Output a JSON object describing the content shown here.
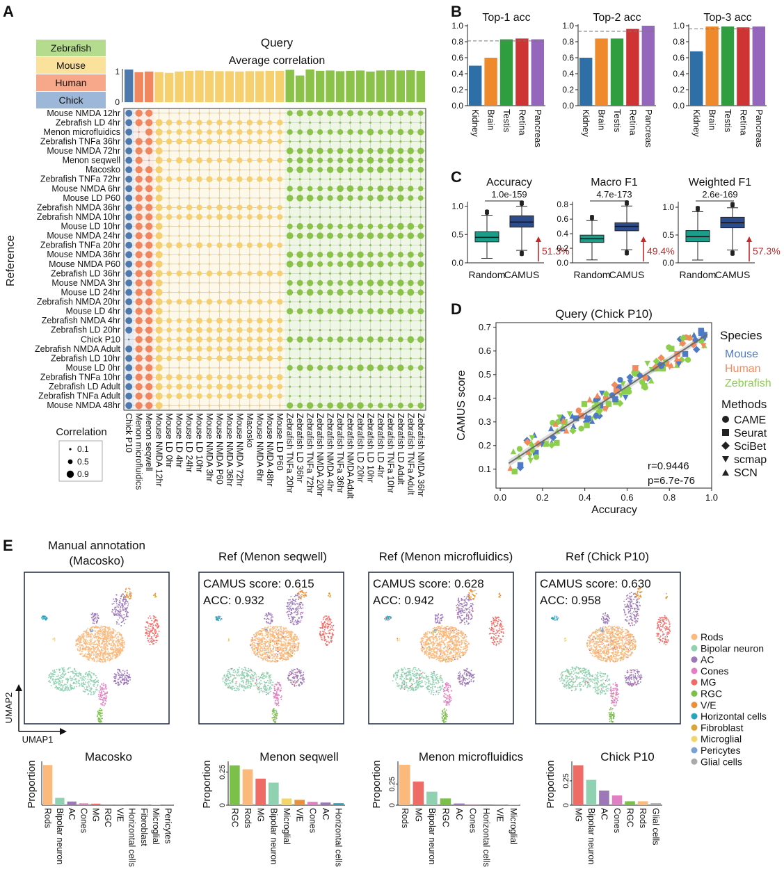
{
  "colors": {
    "Mouse": "#f6cf6e",
    "Zebrafish": "#8bc34a",
    "Human": "#f0875f",
    "Chick": "#4e79ad",
    "MouseLegend": "#fbe29c",
    "ZebrafishLegend": "#b5dc8e",
    "HumanLegend": "#f7a88a",
    "ChickLegend": "#9db7d9",
    "bar_blue": "#2f6fa8",
    "bar_orange": "#ee8a2c",
    "bar_green": "#2e9e3e",
    "bar_red": "#cf3434",
    "bar_purple": "#9467bd",
    "box_random": "#1a9e8a",
    "box_camus": "#2c4c8c",
    "arrow_red": "#c62828"
  },
  "panels": {
    "A": "A",
    "B": "B",
    "C": "C",
    "D": "D",
    "E": "E"
  },
  "heatmap": {
    "query_title": "Query",
    "subtitle": "Average correlation",
    "y_axis_title": "Reference",
    "species_legend": [
      "Zebrafish",
      "Mouse",
      "Human",
      "Chick"
    ],
    "size_legend_title": "Correlation",
    "size_legend": [
      "0.1",
      "0.5",
      "0.9"
    ],
    "columns": [
      "Chick P10",
      "Menon microfluidics",
      "Menon seqwell",
      "Mouse NMDA 12hr",
      "Mouse LD 0hr",
      "Mouse LD 4hr",
      "Mouse LD 24hr",
      "Mouse LD 10hr",
      "Mouse NMDA 3hr",
      "Mouse NMDA P60",
      "Mouse NMDA 36hr",
      "Mouse NMDA 72hr",
      "Macosko",
      "Mouse NMDA 6hr",
      "Mouse NMDA 48hr",
      "Mouse LD P60",
      "Zebrafish TNFa 20hr",
      "Zebrafish LD 36hr",
      "Zebrafish TNFa 72hr",
      "Zebrafish NMDA 20hr",
      "Zebrafish NMDA 4hr",
      "Zebrafish TNFa 36hr",
      "Zebrafish NMDA Adult",
      "Zebrafish LD 20hr",
      "Zebrafish LD 10hr",
      "Zebrafish LD 4hr",
      "Zebrafish TNFa 10hr",
      "Zebrafish LD Adult",
      "Zebrafish TNFa Adult",
      "Zebrafish NMDA 36hr"
    ],
    "column_species": [
      "Chick",
      "Human",
      "Human",
      "Mouse",
      "Mouse",
      "Mouse",
      "Mouse",
      "Mouse",
      "Mouse",
      "Mouse",
      "Mouse",
      "Mouse",
      "Mouse",
      "Mouse",
      "Mouse",
      "Mouse",
      "Zebrafish",
      "Zebrafish",
      "Zebrafish",
      "Zebrafish",
      "Zebrafish",
      "Zebrafish",
      "Zebrafish",
      "Zebrafish",
      "Zebrafish",
      "Zebrafish",
      "Zebrafish",
      "Zebrafish",
      "Zebrafish",
      "Zebrafish"
    ],
    "column_bar_values": [
      0.98,
      0.9,
      0.92,
      0.9,
      0.88,
      0.92,
      0.94,
      0.95,
      0.94,
      0.93,
      0.93,
      0.92,
      0.93,
      0.93,
      0.94,
      0.94,
      0.97,
      0.8,
      0.98,
      0.94,
      0.95,
      0.93,
      0.94,
      0.95,
      0.92,
      0.95,
      0.96,
      0.95,
      0.96,
      0.94
    ],
    "bar_ticks": [
      "0",
      "1"
    ],
    "rows": [
      "Mouse NMDA 12hr",
      "Zebrafish LD 4hr",
      "Menon microfluidics",
      "Zebrafish TNFa 36hr",
      "Mouse NMDA 72hr",
      "Menon seqwell",
      "Macosko",
      "Zebrafish TNFa 72hr",
      "Mouse NMDA 6hr",
      "Mouse LD P60",
      "Zebrafish NMDA 36hr",
      "Zebrafish NMDA 10hr",
      "Mouse LD 10hr",
      "Mouse NMDA 24hr",
      "Zebrafish TNFa 20hr",
      "Mouse NMDA 36hr",
      "Mouse NMDA P60",
      "Zebrafish LD 36hr",
      "Mouse NMDA 3hr",
      "Mouse LD 24hr",
      "Zebrafish NMDA 20hr",
      "Mouse LD 4hr",
      "Zebrafish NMDA 4hr",
      "Zebrafish LD 20hr",
      "Chick P10",
      "Zebrafish NMDA Adult",
      "Zebrafish LD 10hr",
      "Mouse LD 0hr",
      "Zebrafish TNFa 10hr",
      "Zebrafish LD Adult",
      "Zebrafish TNFa Adult",
      "Mouse NMDA 48hr"
    ]
  },
  "chart_data": [
    {
      "panel": "B",
      "type": "bar",
      "title": "Top-1 acc",
      "categories": [
        "Kidney",
        "Brain",
        "Testis",
        "Retina",
        "Pancreas"
      ],
      "values": [
        0.5,
        0.6,
        0.83,
        0.84,
        0.83
      ],
      "reference_line": 0.81,
      "ylim": [
        0.0,
        1.0
      ],
      "yticks": [
        "0.0",
        "0.2",
        "0.4",
        "0.6",
        "0.8",
        "1.0"
      ]
    },
    {
      "panel": "B",
      "type": "bar",
      "title": "Top-2 acc",
      "categories": [
        "Kidney",
        "Brain",
        "Testis",
        "Retina",
        "Pancreas"
      ],
      "values": [
        0.6,
        0.84,
        0.84,
        0.96,
        1.0
      ],
      "reference_line": 0.93,
      "ylim": [
        0.0,
        1.0
      ],
      "yticks": [
        "0.0",
        "0.2",
        "0.4",
        "0.6",
        "0.8",
        "1.0"
      ]
    },
    {
      "panel": "B",
      "type": "bar",
      "title": "Top-3 acc",
      "categories": [
        "Kidney",
        "Brain",
        "Testis",
        "Retina",
        "Pancreas"
      ],
      "values": [
        0.68,
        0.99,
        0.99,
        0.98,
        0.99
      ],
      "reference_line": 0.96,
      "ylim": [
        0.0,
        1.0
      ],
      "yticks": [
        "0.0",
        "0.2",
        "0.4",
        "0.6",
        "0.8",
        "1.0"
      ]
    },
    {
      "panel": "C",
      "type": "box",
      "title": "Accuracy",
      "pvalue": "1.0e-159",
      "categories": [
        "Random",
        "CAMUS"
      ],
      "boxes": [
        {
          "min": 0.08,
          "q1": 0.37,
          "median": 0.45,
          "q3": 0.55,
          "max": 0.84
        },
        {
          "min": 0.22,
          "q1": 0.63,
          "median": 0.72,
          "q3": 0.83,
          "max": 1.0
        }
      ],
      "improvement": "51.3%",
      "ylim": [
        0.0,
        1.08
      ],
      "yticks": [
        "0.0",
        "0.5",
        "1.0"
      ]
    },
    {
      "panel": "C",
      "type": "box",
      "title": "Macro F1",
      "pvalue": "4.7e-173",
      "categories": [
        "Random",
        "CAMUS"
      ],
      "boxes": [
        {
          "min": 0.04,
          "q1": 0.28,
          "median": 0.33,
          "q3": 0.38,
          "max": 0.58
        },
        {
          "min": 0.18,
          "q1": 0.44,
          "median": 0.5,
          "q3": 0.55,
          "max": 0.78
        }
      ],
      "improvement": "49.4%",
      "ylim": [
        0.0,
        0.84
      ],
      "yticks": [
        "0.0",
        "0.2",
        "0.4",
        "0.6",
        "0.8"
      ]
    },
    {
      "panel": "C",
      "type": "box",
      "title": "Weighted F1",
      "pvalue": "2.6e-169",
      "categories": [
        "Random",
        "CAMUS"
      ],
      "boxes": [
        {
          "min": 0.05,
          "q1": 0.38,
          "median": 0.47,
          "q3": 0.58,
          "max": 0.92
        },
        {
          "min": 0.23,
          "q1": 0.63,
          "median": 0.72,
          "q3": 0.82,
          "max": 0.99
        }
      ],
      "improvement": "57.3%",
      "ylim": [
        0.0,
        1.1
      ],
      "yticks": [
        "0.0",
        "0.5",
        "1.0"
      ]
    },
    {
      "panel": "D",
      "type": "scatter",
      "title": "Query (Chick P10)",
      "xlabel": "Accuracy",
      "ylabel": "CAMUS score",
      "xlim": [
        -0.02,
        1.0
      ],
      "ylim": [
        0.02,
        0.72
      ],
      "xticks": [
        "0.0",
        "0.2",
        "0.4",
        "0.6",
        "0.8",
        "1.0"
      ],
      "yticks": [
        "0.1",
        "0.2",
        "0.3",
        "0.4",
        "0.5",
        "0.6",
        "0.7"
      ],
      "stats": [
        "r=0.9446",
        "p=6.7e-76"
      ],
      "species_title": "Species",
      "species": [
        "Mouse",
        "Human",
        "Zebrafish"
      ],
      "methods_title": "Methods",
      "methods": [
        "CAME",
        "Seurat",
        "SciBet",
        "scmap",
        "SCN"
      ],
      "fit_line": {
        "x": [
          0.04,
          0.98
        ],
        "y": [
          0.125,
          0.67
        ]
      }
    },
    {
      "panel": "E",
      "type": "bar",
      "title": "Macosko",
      "ylabel": "Proportion",
      "categories": [
        "Rods",
        "Bipolar neuron",
        "AC",
        "Cones",
        "MG",
        "RGC",
        "V/E",
        "Horizontal cells",
        "Fibroblast",
        "Microglial",
        "Pericytes"
      ],
      "values": [
        0.66,
        0.12,
        0.06,
        0.03,
        0.025,
        0.01,
        0.008,
        0.006,
        0.003,
        0.002,
        0.001
      ],
      "bar_colors": [
        "#fbb97c",
        "#8fd1b0",
        "#9c78b8",
        "#e07fc1",
        "#ef6b66",
        "#7bc149",
        "#e9913a",
        "#2aa3bd",
        "#d9a43a",
        "#f3d56a",
        "#7aa0d6"
      ],
      "ylim": [
        0,
        0.72
      ]
    },
    {
      "panel": "E",
      "type": "bar",
      "title": "Menon seqwell",
      "ylabel": "Proportion",
      "categories": [
        "RGC",
        "Rods",
        "MG",
        "Bipolar neuron",
        "Microglial",
        "V/E",
        "Cones",
        "AC",
        "Horizontal cells"
      ],
      "values": [
        0.3,
        0.27,
        0.2,
        0.17,
        0.05,
        0.04,
        0.025,
        0.02,
        0.015
      ],
      "yticks": [
        "0",
        "0.25"
      ],
      "bar_colors": [
        "#7bc149",
        "#fbb97c",
        "#ef6b66",
        "#8fd1b0",
        "#f3d56a",
        "#e9913a",
        "#e07fc1",
        "#9c78b8",
        "#2aa3bd"
      ],
      "ylim": [
        0,
        0.33
      ]
    },
    {
      "panel": "E",
      "type": "bar",
      "title": "Menon microfluidics",
      "ylabel": "Proportion",
      "categories": [
        "Rods",
        "MG",
        "Bipolar neuron",
        "RGC",
        "AC",
        "Cones",
        "Horizontal cells",
        "V/E",
        "Microglial"
      ],
      "values": [
        0.48,
        0.28,
        0.16,
        0.08,
        0.02,
        0.01,
        0.008,
        0.005,
        0.003
      ],
      "yticks": [
        "0",
        "0.25"
      ],
      "bar_colors": [
        "#fbb97c",
        "#ef6b66",
        "#8fd1b0",
        "#7bc149",
        "#9c78b8",
        "#e07fc1",
        "#2aa3bd",
        "#e9913a",
        "#f3d56a"
      ],
      "ylim": [
        0,
        0.52
      ]
    },
    {
      "panel": "E",
      "type": "bar",
      "title": "Chick P10",
      "ylabel": "Proportion",
      "categories": [
        "MG",
        "Bipolar neuron",
        "AC",
        "Cones",
        "RGC",
        "Rods",
        "Glial cells"
      ],
      "values": [
        0.41,
        0.26,
        0.15,
        0.1,
        0.04,
        0.04,
        0.02
      ],
      "yticks": [
        "0",
        "0.25"
      ],
      "bar_colors": [
        "#ef6b66",
        "#8fd1b0",
        "#9c78b8",
        "#e07fc1",
        "#7bc149",
        "#fbb97c",
        "#aaaaaa"
      ],
      "ylim": [
        0,
        0.45
      ]
    }
  ],
  "umap": {
    "titles": [
      [
        "Manual annotation",
        "(Macosko)"
      ],
      [
        "Ref (Menon seqwell)"
      ],
      [
        "Ref (Menon microfluidics)"
      ],
      [
        "Ref (Chick P10)"
      ]
    ],
    "scores": [
      null,
      [
        "CAMUS score: 0.615",
        "ACC: 0.932"
      ],
      [
        "CAMUS score: 0.628",
        "ACC: 0.942"
      ],
      [
        "CAMUS score: 0.630",
        "ACC: 0.958"
      ]
    ],
    "axis_x": "UMAP1",
    "axis_y": "UMAP2",
    "legend": [
      "Rods",
      "Bipolar neuron",
      "AC",
      "Cones",
      "MG",
      "RGC",
      "V/E",
      "Horizontal cells",
      "Fibroblast",
      "Microglial",
      "Pericytes",
      "Glial cells"
    ],
    "legend_colors": [
      "#fbb97c",
      "#8fd1b0",
      "#9c78b8",
      "#e07fc1",
      "#ef6b66",
      "#7bc149",
      "#e9913a",
      "#2aa3bd",
      "#d9a43a",
      "#f3d56a",
      "#7aa0d6",
      "#aaaaaa"
    ]
  }
}
